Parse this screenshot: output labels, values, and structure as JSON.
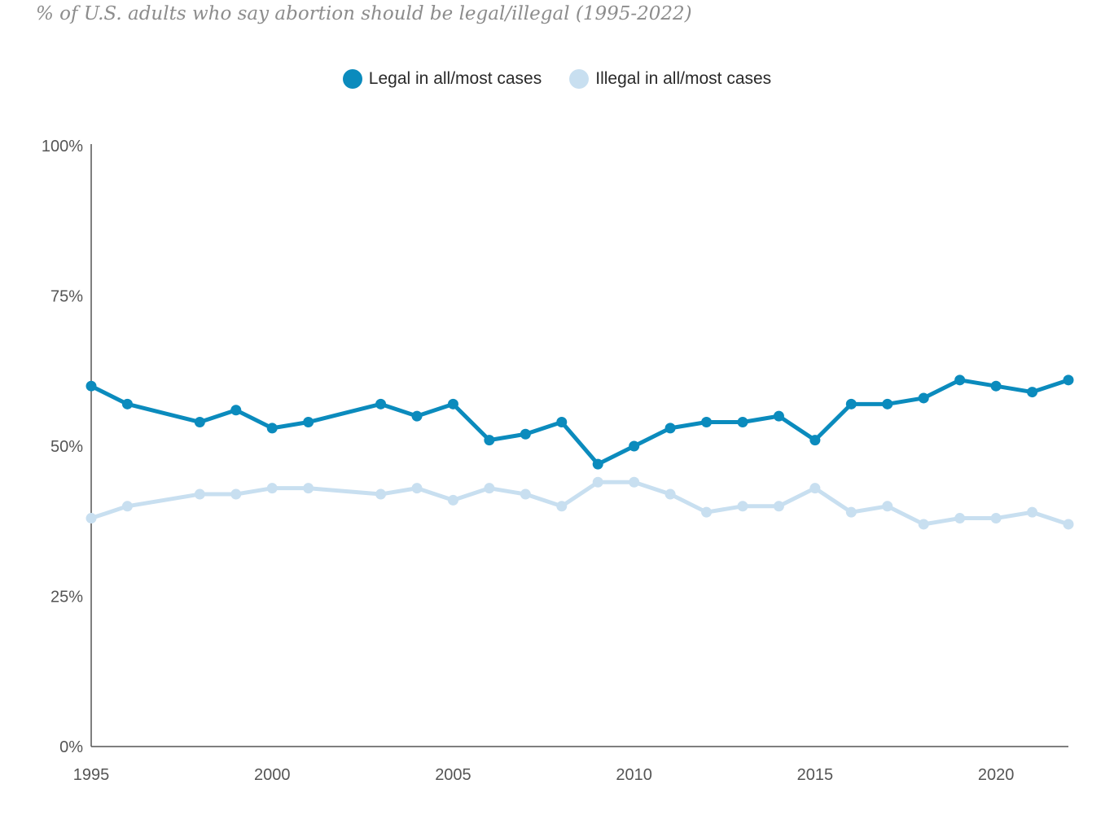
{
  "chart_data": {
    "type": "line",
    "title": "% of U.S. adults who say abortion should be legal/illegal (1995-2022)",
    "xlabel": "",
    "ylabel": "",
    "xlim": [
      1995,
      2022
    ],
    "ylim": [
      0,
      100
    ],
    "x_ticks": [
      1995,
      2000,
      2005,
      2010,
      2015,
      2020
    ],
    "y_ticks": [
      0,
      25,
      50,
      75,
      100
    ],
    "y_tick_labels": [
      "0%",
      "25%",
      "50%",
      "75%",
      "100%"
    ],
    "grid": false,
    "legend_position": "top-center",
    "series": [
      {
        "name": "Legal in all/most cases",
        "color": "#0b8bbd",
        "x": [
          1995,
          1996,
          1998,
          1999,
          2000,
          2001,
          2003,
          2004,
          2005,
          2006,
          2007,
          2008,
          2009,
          2010,
          2011,
          2012,
          2013,
          2014,
          2015,
          2016,
          2017,
          2018,
          2019,
          2020,
          2021,
          2022
        ],
        "values": [
          60,
          57,
          54,
          56,
          53,
          54,
          57,
          55,
          57,
          51,
          52,
          54,
          47,
          50,
          53,
          54,
          54,
          55,
          51,
          57,
          57,
          58,
          61,
          60,
          59,
          61
        ]
      },
      {
        "name": "Illegal in all/most cases",
        "color": "#c8dff0",
        "x": [
          1995,
          1996,
          1998,
          1999,
          2000,
          2001,
          2003,
          2004,
          2005,
          2006,
          2007,
          2008,
          2009,
          2010,
          2011,
          2012,
          2013,
          2014,
          2015,
          2016,
          2017,
          2018,
          2019,
          2020,
          2021,
          2022
        ],
        "values": [
          38,
          40,
          42,
          42,
          43,
          43,
          42,
          43,
          41,
          43,
          42,
          40,
          44,
          44,
          42,
          39,
          40,
          40,
          43,
          39,
          40,
          37,
          38,
          38,
          39,
          37
        ]
      }
    ]
  }
}
